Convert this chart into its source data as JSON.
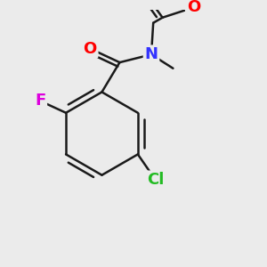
{
  "background_color": "#ebebeb",
  "bond_color": "#1a1a1a",
  "atom_colors": {
    "O": "#ff0000",
    "N": "#3333ff",
    "F": "#dd00dd",
    "Cl": "#22bb22"
  },
  "bond_width": 1.8,
  "font_size_atoms": 13
}
